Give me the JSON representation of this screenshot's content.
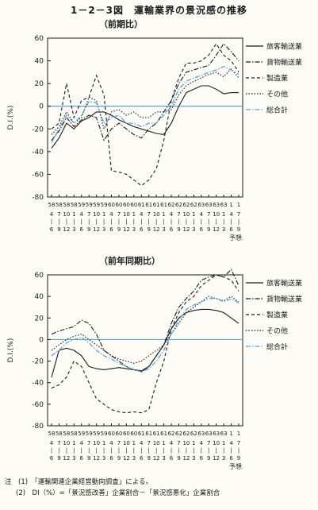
{
  "figure": {
    "title": "1－2－3図　運輸業界の景況感の推移",
    "notes": [
      "注　(1)　「運輸関連企業経営動向調査」による。",
      "(2)　DI（%）=「景況感改善」企業割合－「景況感悪化」企業割合"
    ]
  },
  "chart_data": [
    {
      "type": "line",
      "title": "（前期比）",
      "ylabel": "D.I.(%)",
      "ylim": [
        -80,
        60
      ],
      "yticks": [
        60,
        40,
        20,
        0,
        -20,
        -40,
        -60,
        -80
      ],
      "xlabel": "予想",
      "categories": [
        [
          "58",
          "4",
          "6"
        ],
        [
          "58",
          "7",
          "9"
        ],
        [
          "58",
          "10",
          "12"
        ],
        [
          "58",
          "1",
          "3"
        ],
        [
          "59",
          "4",
          "6"
        ],
        [
          "59",
          "7",
          "9"
        ],
        [
          "59",
          "10",
          "12"
        ],
        [
          "59",
          "1",
          "3"
        ],
        [
          "60",
          "4",
          "6"
        ],
        [
          "60",
          "7",
          "9"
        ],
        [
          "60",
          "10",
          "12"
        ],
        [
          "60",
          "1",
          "3"
        ],
        [
          "61",
          "4",
          "6"
        ],
        [
          "61",
          "7",
          "9"
        ],
        [
          "61",
          "10",
          "12"
        ],
        [
          "61",
          "1",
          "3"
        ],
        [
          "62",
          "4",
          "6"
        ],
        [
          "62",
          "7",
          "9"
        ],
        [
          "62",
          "10",
          "12"
        ],
        [
          "62",
          "1",
          "3"
        ],
        [
          "63",
          "4",
          "6"
        ],
        [
          "63",
          "7",
          "9"
        ],
        [
          "63",
          "10",
          "12"
        ],
        [
          "63",
          "1",
          "3"
        ],
        [
          "1",
          "4",
          "6"
        ],
        [
          "1",
          "7",
          "9"
        ]
      ],
      "grid": false,
      "legend": "right",
      "series": [
        {
          "name": "旅客輸送業",
          "values": [
            -37,
            -28,
            -15,
            -20,
            -13,
            -10,
            -5,
            -5,
            -8,
            -12,
            -15,
            -18,
            -20,
            -22,
            -24,
            -25,
            -15,
            0,
            12,
            15,
            18,
            18,
            15,
            11,
            12,
            12
          ],
          "color": "#1a1a1a",
          "dash": ""
        },
        {
          "name": "貨物輸送業",
          "values": [
            -30,
            -22,
            -10,
            -18,
            -12,
            -8,
            -10,
            -30,
            -20,
            -15,
            -20,
            -25,
            -28,
            -20,
            -15,
            -5,
            5,
            20,
            30,
            32,
            34,
            36,
            45,
            55,
            48,
            40
          ],
          "color": "#1a1a1a",
          "dash": "6,2,1.5,2"
        },
        {
          "name": "製造業",
          "values": [
            -20,
            -15,
            20,
            -10,
            5,
            8,
            27,
            10,
            -57,
            -58,
            -60,
            -65,
            -70,
            -65,
            -55,
            -30,
            5,
            25,
            38,
            38,
            40,
            45,
            55,
            45,
            40,
            30
          ],
          "color": "#1a1a1a",
          "dash": "4,3"
        },
        {
          "name": "その他",
          "values": [
            -25,
            -18,
            -5,
            -15,
            -10,
            8,
            5,
            -20,
            -5,
            -3,
            -8,
            -5,
            -10,
            -10,
            -5,
            -5,
            -3,
            10,
            18,
            22,
            25,
            28,
            30,
            26,
            33,
            25
          ],
          "color": "#1a1a1a",
          "dash": "1.5,2"
        },
        {
          "name": "総合計",
          "values": [
            -32,
            -20,
            -8,
            -15,
            -8,
            4,
            3,
            -15,
            -10,
            -8,
            -15,
            -15,
            -18,
            -15,
            -15,
            -8,
            0,
            15,
            22,
            25,
            27,
            30,
            32,
            35,
            32,
            28
          ],
          "color": "#5aa7d8",
          "dash": "6,2,1.5,2"
        }
      ]
    },
    {
      "type": "line",
      "title": "（前年同期比）",
      "ylabel": "D.I.(%)",
      "ylim": [
        -80,
        60
      ],
      "yticks": [
        60,
        40,
        20,
        0,
        -20,
        -40,
        -60,
        -80
      ],
      "xlabel": "予想",
      "categories": [
        [
          "58",
          "4",
          "6"
        ],
        [
          "58",
          "7",
          "9"
        ],
        [
          "58",
          "10",
          "12"
        ],
        [
          "58",
          "1",
          "3"
        ],
        [
          "59",
          "4",
          "6"
        ],
        [
          "59",
          "7",
          "9"
        ],
        [
          "59",
          "10",
          "12"
        ],
        [
          "59",
          "1",
          "3"
        ],
        [
          "60",
          "4",
          "6"
        ],
        [
          "60",
          "7",
          "9"
        ],
        [
          "60",
          "10",
          "12"
        ],
        [
          "60",
          "1",
          "3"
        ],
        [
          "61",
          "4",
          "6"
        ],
        [
          "61",
          "7",
          "9"
        ],
        [
          "61",
          "10",
          "12"
        ],
        [
          "61",
          "1",
          "3"
        ],
        [
          "62",
          "4",
          "6"
        ],
        [
          "62",
          "7",
          "9"
        ],
        [
          "62",
          "10",
          "12"
        ],
        [
          "62",
          "1",
          "3"
        ],
        [
          "63",
          "4",
          "6"
        ],
        [
          "63",
          "7",
          "9"
        ],
        [
          "63",
          "10",
          "12"
        ],
        [
          "63",
          "1",
          "3"
        ],
        [
          "1",
          "4",
          "6"
        ],
        [
          "1",
          "7",
          "9"
        ]
      ],
      "grid": false,
      "legend": "right",
      "series": [
        {
          "name": "旅客輸送業",
          "values": [
            -35,
            -10,
            -8,
            -10,
            -15,
            -25,
            -27,
            -28,
            -27,
            -26,
            -27,
            -28,
            -29,
            -25,
            -15,
            -5,
            10,
            20,
            25,
            27,
            28,
            28,
            27,
            25,
            20,
            15
          ],
          "color": "#1a1a1a",
          "dash": ""
        },
        {
          "name": "貨物輸送業",
          "values": [
            5,
            8,
            10,
            12,
            18,
            15,
            5,
            -10,
            -15,
            -20,
            -25,
            -28,
            -30,
            -25,
            -15,
            -5,
            15,
            30,
            38,
            45,
            55,
            58,
            60,
            58,
            65,
            50
          ],
          "color": "#1a1a1a",
          "dash": "6,2,1.5,2"
        },
        {
          "name": "製造業",
          "values": [
            -45,
            -42,
            -35,
            -20,
            -25,
            -40,
            -55,
            -60,
            -65,
            -67,
            -68,
            -67,
            -68,
            -65,
            -40,
            -20,
            10,
            25,
            35,
            40,
            50,
            55,
            60,
            58,
            55,
            45
          ],
          "color": "#1a1a1a",
          "dash": "4,3"
        },
        {
          "name": "その他",
          "values": [
            -10,
            -5,
            0,
            3,
            5,
            0,
            -5,
            -10,
            -15,
            -18,
            -20,
            -22,
            -20,
            -15,
            -10,
            -5,
            5,
            15,
            25,
            30,
            35,
            40,
            38,
            36,
            40,
            35
          ],
          "color": "#1a1a1a",
          "dash": "1.5,2"
        },
        {
          "name": "総合計",
          "values": [
            -15,
            -10,
            -3,
            0,
            2,
            -3,
            -10,
            -15,
            -18,
            -22,
            -25,
            -28,
            -30,
            -27,
            -20,
            -10,
            5,
            18,
            28,
            32,
            35,
            38,
            38,
            35,
            38,
            34
          ],
          "color": "#5aa7d8",
          "dash": "6,2,1.5,2"
        }
      ]
    }
  ]
}
